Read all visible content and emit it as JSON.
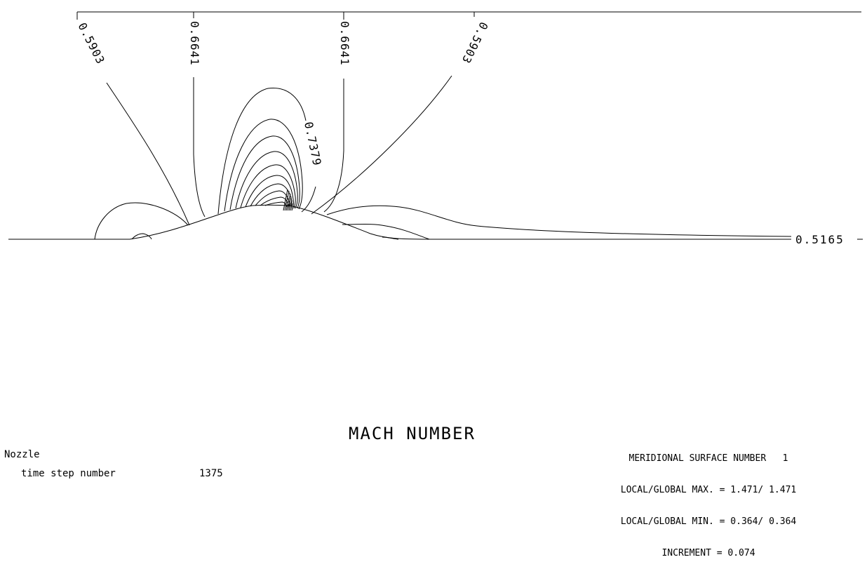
{
  "title": "MACH NUMBER",
  "case_name": "Nozzle",
  "time_step": {
    "label": "time step number",
    "value": "1375"
  },
  "info": {
    "surface": "MERIDIONAL SURFACE NUMBER   1",
    "max": "LOCAL/GLOBAL MAX. = 1.471/ 1.471",
    "min": "LOCAL/GLOBAL MIN. = 0.364/ 0.364",
    "increment": "INCREMENT = 0.074"
  },
  "contour_labels": [
    "0.5903",
    "0.6641",
    "0.6641",
    "0.5903",
    "0.7379",
    "0.5165"
  ],
  "colors": {
    "line": "#000000",
    "background": "#ffffff"
  }
}
